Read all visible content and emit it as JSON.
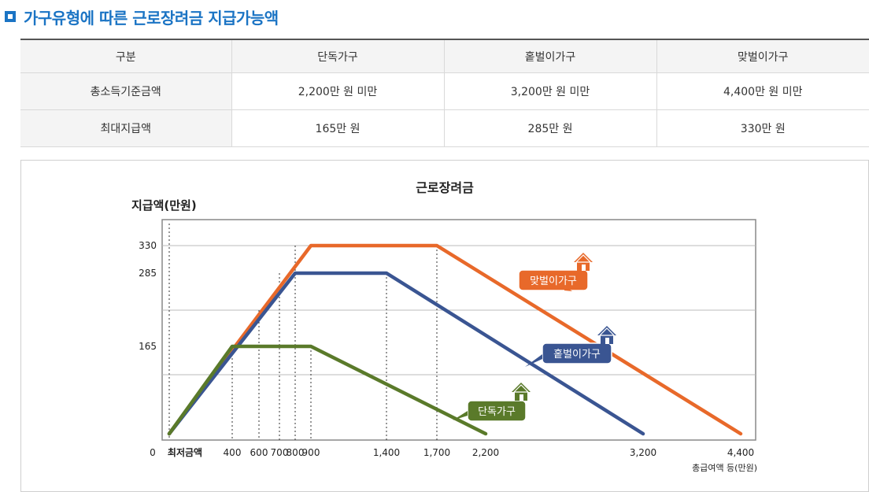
{
  "heading": "가구유형에 따른 근로장려금 지급가능액",
  "table": {
    "headers": [
      "구분",
      "단독가구",
      "홑벌이가구",
      "맞벌이가구"
    ],
    "rows": [
      {
        "label": "총소득기준금액",
        "cells": [
          "2,200만 원 미만",
          "3,200만 원 미만",
          "4,400만 원 미만"
        ]
      },
      {
        "label": "최대지급액",
        "cells": [
          "165만 원",
          "285만 원",
          "330만 원"
        ]
      }
    ]
  },
  "chart_data": {
    "type": "line",
    "title": "근로장려금",
    "ylabel": "지급액(만원)",
    "xlabel": "총급여액 등(만원)",
    "x_ticks": [
      {
        "value": 0,
        "label": "0"
      },
      {
        "value": 100,
        "label": "최저금액"
      },
      {
        "value": 400,
        "label": "400"
      },
      {
        "value": 600,
        "label": "600"
      },
      {
        "value": 700,
        "label": "700"
      },
      {
        "value": 800,
        "label": "800"
      },
      {
        "value": 900,
        "label": "900"
      },
      {
        "value": 1400,
        "label": "1,400"
      },
      {
        "value": 1700,
        "label": "1,700"
      },
      {
        "value": 2200,
        "label": "2,200"
      },
      {
        "value": 3200,
        "label": "3,200"
      },
      {
        "value": 4400,
        "label": "4,400"
      }
    ],
    "y_ticks": [
      {
        "value": 165,
        "label": "165"
      },
      {
        "value": 285,
        "label": "285"
      },
      {
        "value": 330,
        "label": "330"
      }
    ],
    "ylim": [
      0,
      360
    ],
    "grid": true,
    "series": [
      {
        "name": "맞벌이가구",
        "color": "#e8692a",
        "points": [
          [
            100,
            10
          ],
          [
            900,
            330
          ],
          [
            1700,
            330
          ],
          [
            4400,
            10
          ]
        ]
      },
      {
        "name": "홑벌이가구",
        "color": "#3a5592",
        "points": [
          [
            100,
            10
          ],
          [
            800,
            285
          ],
          [
            1400,
            285
          ],
          [
            3200,
            10
          ]
        ]
      },
      {
        "name": "단독가구",
        "color": "#5a7a2a",
        "points": [
          [
            100,
            10
          ],
          [
            400,
            165
          ],
          [
            900,
            165
          ],
          [
            2200,
            10
          ]
        ]
      }
    ],
    "legend_placement": "on-line labels with house icons"
  }
}
